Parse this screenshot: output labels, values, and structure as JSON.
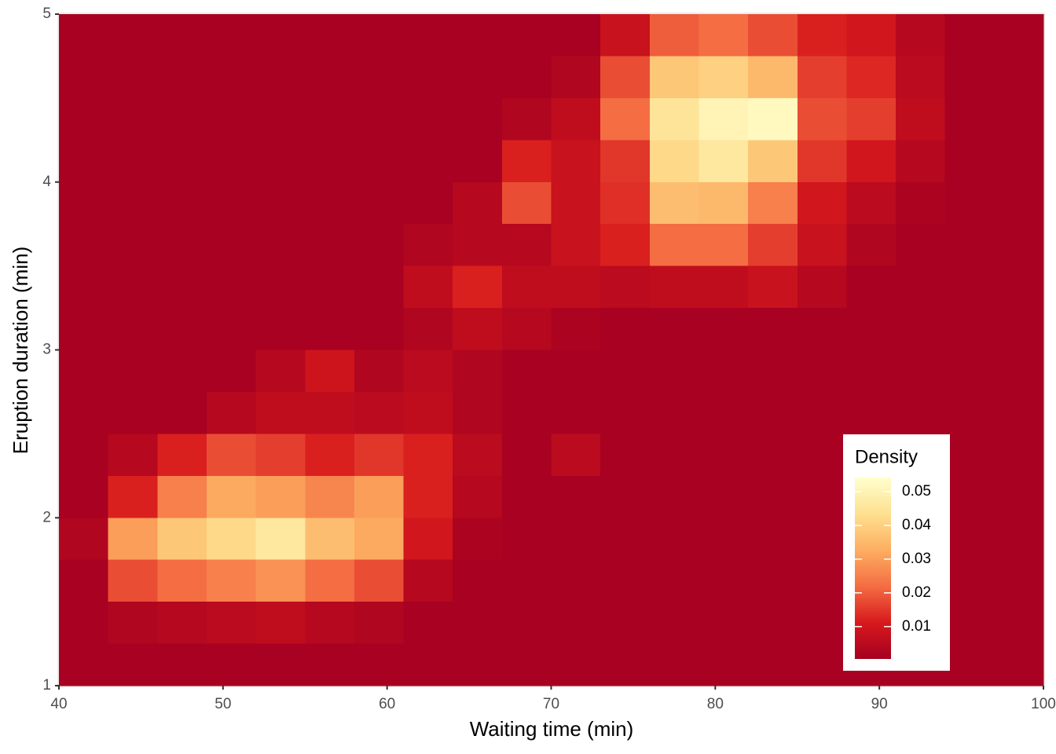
{
  "chart_data": {
    "type": "heatmap",
    "x_label": "Waiting time (min)",
    "y_label": "Eruption duration (min)",
    "xlim": [
      40,
      100
    ],
    "xticks": [
      40,
      50,
      60,
      70,
      80,
      90,
      100
    ],
    "ylim": [
      1,
      5
    ],
    "yticks": [
      1,
      2,
      3,
      4,
      5
    ],
    "x": [
      41.5,
      44.5,
      47.5,
      50.5,
      53.5,
      56.5,
      59.5,
      62.5,
      65.5,
      68.5,
      71.5,
      74.5,
      77.5,
      80.5,
      83.5,
      86.5,
      89.5,
      92.5,
      95.5,
      98.5
    ],
    "y": [
      4.875,
      4.625,
      4.375,
      4.125,
      3.875,
      3.625,
      3.375,
      3.125,
      2.875,
      2.625,
      2.375,
      2.125,
      1.875,
      1.625,
      1.375,
      1.125
    ],
    "z": [
      [
        0.001,
        0.001,
        0.001,
        0.001,
        0.001,
        0.001,
        0.001,
        0.001,
        0.001,
        0.001,
        0.001,
        0.008,
        0.02,
        0.022,
        0.018,
        0.012,
        0.01,
        0.004,
        0.001,
        0.001
      ],
      [
        0.001,
        0.001,
        0.001,
        0.001,
        0.001,
        0.001,
        0.001,
        0.001,
        0.001,
        0.001,
        0.003,
        0.018,
        0.038,
        0.04,
        0.035,
        0.016,
        0.013,
        0.005,
        0.001,
        0.001
      ],
      [
        0.001,
        0.001,
        0.001,
        0.001,
        0.001,
        0.001,
        0.001,
        0.001,
        0.001,
        0.003,
        0.006,
        0.022,
        0.045,
        0.05,
        0.052,
        0.018,
        0.016,
        0.006,
        0.001,
        0.001
      ],
      [
        0.001,
        0.001,
        0.001,
        0.001,
        0.001,
        0.001,
        0.001,
        0.001,
        0.001,
        0.012,
        0.008,
        0.015,
        0.042,
        0.046,
        0.038,
        0.015,
        0.01,
        0.004,
        0.001,
        0.001
      ],
      [
        0.001,
        0.001,
        0.001,
        0.001,
        0.001,
        0.001,
        0.001,
        0.001,
        0.004,
        0.018,
        0.008,
        0.014,
        0.036,
        0.035,
        0.025,
        0.01,
        0.005,
        0.002,
        0.001,
        0.001
      ],
      [
        0.001,
        0.001,
        0.001,
        0.001,
        0.001,
        0.001,
        0.001,
        0.003,
        0.004,
        0.004,
        0.008,
        0.012,
        0.022,
        0.022,
        0.016,
        0.008,
        0.003,
        0.001,
        0.001,
        0.001
      ],
      [
        0.001,
        0.001,
        0.001,
        0.001,
        0.001,
        0.001,
        0.001,
        0.006,
        0.012,
        0.006,
        0.006,
        0.005,
        0.006,
        0.006,
        0.008,
        0.004,
        0.001,
        0.001,
        0.001,
        0.001
      ],
      [
        0.001,
        0.001,
        0.001,
        0.001,
        0.001,
        0.001,
        0.001,
        0.003,
        0.006,
        0.004,
        0.002,
        0.001,
        0.001,
        0.001,
        0.001,
        0.001,
        0.001,
        0.001,
        0.001,
        0.001
      ],
      [
        0.001,
        0.001,
        0.001,
        0.001,
        0.004,
        0.009,
        0.003,
        0.005,
        0.003,
        0.001,
        0.001,
        0.001,
        0.001,
        0.001,
        0.001,
        0.001,
        0.001,
        0.001,
        0.001,
        0.001
      ],
      [
        0.001,
        0.001,
        0.001,
        0.004,
        0.006,
        0.006,
        0.005,
        0.006,
        0.003,
        0.001,
        0.001,
        0.001,
        0.001,
        0.001,
        0.001,
        0.001,
        0.001,
        0.001,
        0.001,
        0.001
      ],
      [
        0.001,
        0.004,
        0.012,
        0.018,
        0.016,
        0.012,
        0.015,
        0.012,
        0.005,
        0.001,
        0.005,
        0.001,
        0.001,
        0.001,
        0.001,
        0.001,
        0.001,
        0.001,
        0.001,
        0.001
      ],
      [
        0.001,
        0.012,
        0.025,
        0.032,
        0.03,
        0.026,
        0.03,
        0.012,
        0.004,
        0.001,
        0.001,
        0.001,
        0.001,
        0.001,
        0.001,
        0.001,
        0.001,
        0.001,
        0.001,
        0.001
      ],
      [
        0.003,
        0.03,
        0.038,
        0.042,
        0.046,
        0.036,
        0.032,
        0.01,
        0.002,
        0.001,
        0.001,
        0.001,
        0.001,
        0.001,
        0.001,
        0.001,
        0.001,
        0.001,
        0.001,
        0.001
      ],
      [
        0.001,
        0.018,
        0.022,
        0.025,
        0.028,
        0.022,
        0.018,
        0.004,
        0.001,
        0.001,
        0.001,
        0.001,
        0.001,
        0.001,
        0.001,
        0.001,
        0.001,
        0.001,
        0.001,
        0.001
      ],
      [
        0.001,
        0.003,
        0.004,
        0.005,
        0.006,
        0.004,
        0.003,
        0.001,
        0.001,
        0.001,
        0.001,
        0.001,
        0.001,
        0.001,
        0.001,
        0.001,
        0.001,
        0.001,
        0.001,
        0.001
      ],
      [
        0.001,
        0.001,
        0.001,
        0.001,
        0.001,
        0.001,
        0.001,
        0.001,
        0.001,
        0.001,
        0.001,
        0.001,
        0.001,
        0.001,
        0.001,
        0.001,
        0.001,
        0.001,
        0.001,
        0.001
      ]
    ],
    "colors": [
      "#a50021",
      "#d7191c",
      "#f46d43",
      "#fdae61",
      "#fee090",
      "#ffffcc"
    ],
    "legend_title": "Density",
    "zlim": [
      0.0004,
      0.0542
    ],
    "zticks": [
      0.01,
      0.02,
      0.03,
      0.04,
      0.05
    ],
    "legend_position": "bottom-right"
  }
}
